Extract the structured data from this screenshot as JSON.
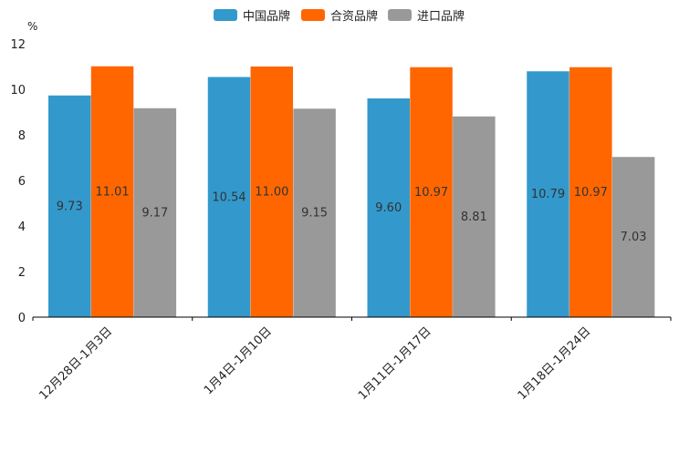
{
  "colors": {
    "china": "#3399CC",
    "jv": "#FF6600",
    "import": "#999999",
    "axis": "#000000",
    "label": "#333333"
  },
  "legend": [
    {
      "name": "中国品牌",
      "color": "#3399CC"
    },
    {
      "name": "合资品牌",
      "color": "#FF6600"
    },
    {
      "name": "进口品牌",
      "color": "#999999"
    }
  ],
  "unit": "%",
  "chart_data": {
    "type": "bar",
    "title": "",
    "xlabel": "",
    "ylabel": "%",
    "ylim": [
      0,
      12
    ],
    "yticks": [
      0,
      2,
      4,
      6,
      8,
      10,
      12
    ],
    "categories": [
      "12月28日-1月3日",
      "1月4日-1月10日",
      "1月11日-1月17日",
      "1月18日-1月24日"
    ],
    "series": [
      {
        "name": "中国品牌",
        "values": [
          9.73,
          10.54,
          9.6,
          10.79
        ],
        "labels": [
          "9.73",
          "10.54",
          "9.60",
          "10.79"
        ]
      },
      {
        "name": "合资品牌",
        "values": [
          11.01,
          11.0,
          10.97,
          10.97
        ],
        "labels": [
          "11.01",
          "11.00",
          "10.97",
          "10.97"
        ]
      },
      {
        "name": "进口品牌",
        "values": [
          9.17,
          9.15,
          8.81,
          7.03
        ],
        "labels": [
          "9.17",
          "9.15",
          "8.81",
          "7.03"
        ]
      }
    ],
    "legend_position": "top-center",
    "grid": false
  }
}
